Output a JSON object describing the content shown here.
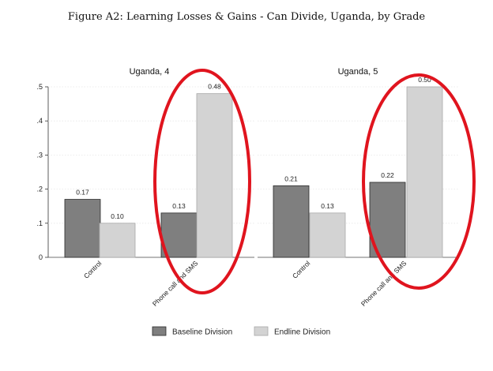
{
  "figure_title": "Figure A2: Learning Losses & Gains - Can Divide, Uganda, by Grade",
  "colors": {
    "baseline": "#7f7f7f",
    "endline": "#d3d3d3",
    "highlight": "#e0141e",
    "grid": "#e6e6e6"
  },
  "chart_data": [
    {
      "type": "bar",
      "title": "Uganda, 4",
      "categories": [
        "Control",
        "Phone call and SMS"
      ],
      "series": [
        {
          "name": "Baseline Division",
          "values": [
            0.17,
            0.13
          ],
          "labels": [
            "0.17",
            "0.13"
          ]
        },
        {
          "name": "Endline Division",
          "values": [
            0.1,
            0.48
          ],
          "labels": [
            "0.10",
            "0.48"
          ]
        }
      ],
      "ylim": [
        0,
        0.5
      ],
      "yticks": [
        0,
        0.1,
        0.2,
        0.3,
        0.4,
        0.5
      ],
      "ytick_labels": [
        "0",
        ".1",
        ".2",
        ".3",
        ".4",
        ".5"
      ],
      "grid": true,
      "highlighted_category": "Phone call and SMS"
    },
    {
      "type": "bar",
      "title": "Uganda, 5",
      "categories": [
        "Control",
        "Phone call and SMS"
      ],
      "series": [
        {
          "name": "Baseline Division",
          "values": [
            0.21,
            0.22
          ],
          "labels": [
            "0.21",
            "0.22"
          ]
        },
        {
          "name": "Endline Division",
          "values": [
            0.13,
            0.5
          ],
          "labels": [
            "0.13",
            "0.50"
          ]
        }
      ],
      "ylim": [
        0,
        0.5
      ],
      "grid": true,
      "highlighted_category": "Phone call and SMS"
    }
  ],
  "legend": {
    "position": "bottom",
    "items": [
      {
        "label": "Baseline Division",
        "color": "#7f7f7f"
      },
      {
        "label": "Endline Division",
        "color": "#d3d3d3"
      }
    ]
  }
}
